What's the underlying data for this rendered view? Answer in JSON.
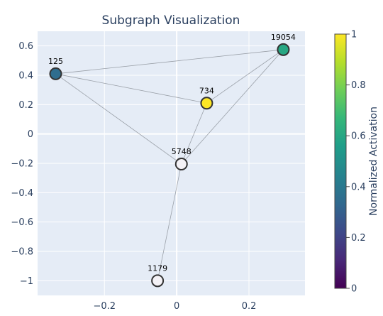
{
  "chart_data": {
    "type": "scatter",
    "title": "Subgraph Visualization",
    "xlabel": "",
    "ylabel": "",
    "xlim": [
      -0.385,
      0.355
    ],
    "ylim": [
      -1.1,
      0.7
    ],
    "x_ticks": [
      -0.2,
      0,
      0.2
    ],
    "x_tick_labels": [
      "−0.2",
      "0",
      "0.2"
    ],
    "y_ticks": [
      -1,
      -0.8,
      -0.6,
      -0.4,
      -0.2,
      0,
      0.2,
      0.4,
      0.6
    ],
    "y_tick_labels": [
      "−1",
      "−0.8",
      "−0.6",
      "−0.4",
      "−0.2",
      "0",
      "0.2",
      "0.4",
      "0.6"
    ],
    "grid": true,
    "nodes": [
      {
        "id": "125",
        "x": -0.335,
        "y": 0.41,
        "activation": 0.35
      },
      {
        "id": "19054",
        "x": 0.295,
        "y": 0.575,
        "activation": 0.6
      },
      {
        "id": "734",
        "x": 0.083,
        "y": 0.21,
        "activation": 1.0
      },
      {
        "id": "5748",
        "x": 0.013,
        "y": -0.205,
        "activation": 0.0
      },
      {
        "id": "1179",
        "x": -0.053,
        "y": -1.0,
        "activation": 0.0
      }
    ],
    "edges": [
      [
        "125",
        "19054"
      ],
      [
        "125",
        "734"
      ],
      [
        "125",
        "5748"
      ],
      [
        "19054",
        "734"
      ],
      [
        "19054",
        "5748"
      ],
      [
        "734",
        "5748"
      ],
      [
        "5748",
        "1179"
      ]
    ],
    "colorbar": {
      "title": "Normalized Activation",
      "range": [
        0,
        1
      ],
      "ticks": [
        0,
        0.2,
        0.4,
        0.6,
        0.8,
        1
      ],
      "tick_labels": [
        "0",
        "0.2",
        "0.4",
        "0.6",
        "0.8",
        "1"
      ],
      "colorscale": "viridis"
    }
  }
}
